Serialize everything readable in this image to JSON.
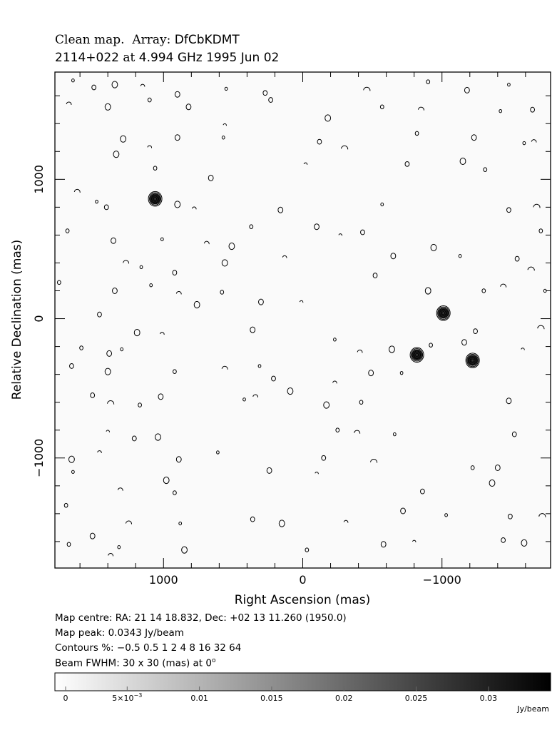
{
  "title": {
    "map_word": "Clean map.",
    "array_word": "Array:",
    "array_name": "DfCbKDMT",
    "source": "2114+022",
    "at_word": "at",
    "freq_date": "4.994 GHz 1995 Jun 02"
  },
  "info": {
    "map_centre": "Map centre:  RA: 21 14 18.832,  Dec: +02 13 11.260 (1950.0)",
    "map_peak": "Map peak: 0.0343 Jy/beam",
    "contours": "Contours %: −0.5 0.5 1 2 4 8 16 32 64",
    "beam_prefix": "Beam FWHM: 30 x 30 (mas) at 0",
    "beam_degree": "o"
  },
  "chart_data": {
    "type": "heatmap",
    "xlabel": "Right Ascension  (mas)",
    "ylabel": "Relative Declination  (mas)",
    "xlim": [
      1780,
      -1780
    ],
    "ylim": [
      -1790,
      1770
    ],
    "x_ticks": [
      1000,
      0,
      -1000
    ],
    "x_tick_labels": [
      "1000",
      "0",
      "−1000"
    ],
    "y_ticks": [
      1000,
      0,
      -1000
    ],
    "y_tick_labels": [
      "1000",
      "0",
      "−1000"
    ],
    "colorbar": {
      "range": [
        0,
        0.0343
      ],
      "unit": "Jy/beam",
      "ticks": [
        0,
        0.005,
        0.01,
        0.015,
        0.02,
        0.025,
        0.03
      ],
      "tick_labels": [
        "0",
        "5×10",
        "0.01",
        "0.015",
        "0.02",
        "0.025",
        "0.03"
      ],
      "exponent_label": "−3",
      "colormap": [
        "#ffffff",
        "#000000"
      ]
    },
    "sources": [
      {
        "x": 1060,
        "y": 860
      },
      {
        "x": -1010,
        "y": 40
      },
      {
        "x": -820,
        "y": -260
      },
      {
        "x": -1220,
        "y": -300
      }
    ],
    "noise_contours": [
      [
        1650,
        1710
      ],
      [
        1500,
        1660
      ],
      [
        1350,
        1680
      ],
      [
        1150,
        1670
      ],
      [
        900,
        1610
      ],
      [
        550,
        1650
      ],
      [
        270,
        1620
      ],
      [
        -460,
        1640
      ],
      [
        -900,
        1700
      ],
      [
        -1180,
        1640
      ],
      [
        -1480,
        1680
      ],
      [
        1680,
        1540
      ],
      [
        1400,
        1520
      ],
      [
        1100,
        1570
      ],
      [
        820,
        1520
      ],
      [
        560,
        1390
      ],
      [
        230,
        1570
      ],
      [
        -180,
        1440
      ],
      [
        -570,
        1520
      ],
      [
        -850,
        1500
      ],
      [
        -1420,
        1490
      ],
      [
        -1650,
        1500
      ],
      [
        1290,
        1290
      ],
      [
        1100,
        1230
      ],
      [
        900,
        1300
      ],
      [
        570,
        1300
      ],
      [
        -120,
        1270
      ],
      [
        -300,
        1220
      ],
      [
        -820,
        1330
      ],
      [
        -1230,
        1300
      ],
      [
        -1590,
        1260
      ],
      [
        -1660,
        1270
      ],
      [
        1340,
        1180
      ],
      [
        1060,
        1080
      ],
      [
        660,
        1010
      ],
      [
        -20,
        1110
      ],
      [
        -750,
        1110
      ],
      [
        -1150,
        1130
      ],
      [
        -1310,
        1070
      ],
      [
        1620,
        910
      ],
      [
        1480,
        840
      ],
      [
        1410,
        800
      ],
      [
        900,
        820
      ],
      [
        780,
        790
      ],
      [
        160,
        780
      ],
      [
        -570,
        820
      ],
      [
        -1480,
        780
      ],
      [
        -1680,
        800
      ],
      [
        1690,
        630
      ],
      [
        1360,
        560
      ],
      [
        1010,
        570
      ],
      [
        690,
        540
      ],
      [
        510,
        520
      ],
      [
        370,
        660
      ],
      [
        -100,
        660
      ],
      [
        -270,
        600
      ],
      [
        -430,
        620
      ],
      [
        -940,
        510
      ],
      [
        -1710,
        630
      ],
      [
        1270,
        400
      ],
      [
        1160,
        370
      ],
      [
        920,
        330
      ],
      [
        560,
        400
      ],
      [
        130,
        440
      ],
      [
        -650,
        450
      ],
      [
        -1130,
        450
      ],
      [
        -1540,
        430
      ],
      [
        -1640,
        350
      ],
      [
        1750,
        260
      ],
      [
        1350,
        200
      ],
      [
        1090,
        240
      ],
      [
        890,
        180
      ],
      [
        760,
        100
      ],
      [
        580,
        190
      ],
      [
        300,
        120
      ],
      [
        10,
        120
      ],
      [
        -520,
        310
      ],
      [
        -900,
        200
      ],
      [
        -1300,
        200
      ],
      [
        -1440,
        230
      ],
      [
        -1740,
        200
      ],
      [
        1460,
        30
      ],
      [
        1190,
        -100
      ],
      [
        1010,
        -110
      ],
      [
        360,
        -80
      ],
      [
        -230,
        -150
      ],
      [
        -1240,
        -90
      ],
      [
        -1710,
        -70
      ],
      [
        1590,
        -210
      ],
      [
        1390,
        -250
      ],
      [
        1300,
        -220
      ],
      [
        -410,
        -240
      ],
      [
        -640,
        -220
      ],
      [
        -920,
        -190
      ],
      [
        -1160,
        -170
      ],
      [
        -1580,
        -220
      ],
      [
        1660,
        -340
      ],
      [
        1400,
        -380
      ],
      [
        920,
        -380
      ],
      [
        560,
        -360
      ],
      [
        310,
        -340
      ],
      [
        210,
        -430
      ],
      [
        90,
        -520
      ],
      [
        -230,
        -460
      ],
      [
        -490,
        -390
      ],
      [
        -710,
        -390
      ],
      [
        1510,
        -550
      ],
      [
        1380,
        -610
      ],
      [
        1170,
        -620
      ],
      [
        1020,
        -560
      ],
      [
        420,
        -580
      ],
      [
        340,
        -560
      ],
      [
        -170,
        -620
      ],
      [
        -420,
        -600
      ],
      [
        -1480,
        -590
      ],
      [
        1400,
        -810
      ],
      [
        1210,
        -860
      ],
      [
        1040,
        -850
      ],
      [
        -250,
        -800
      ],
      [
        -390,
        -820
      ],
      [
        -660,
        -830
      ],
      [
        -1520,
        -830
      ],
      [
        1660,
        -1010
      ],
      [
        1460,
        -960
      ],
      [
        890,
        -1010
      ],
      [
        610,
        -960
      ],
      [
        -150,
        -1000
      ],
      [
        -510,
        -1030
      ],
      [
        -1220,
        -1070
      ],
      [
        -1400,
        -1070
      ],
      [
        1650,
        -1100
      ],
      [
        1310,
        -1230
      ],
      [
        980,
        -1160
      ],
      [
        920,
        -1250
      ],
      [
        240,
        -1090
      ],
      [
        -100,
        -1110
      ],
      [
        -860,
        -1240
      ],
      [
        -1360,
        -1180
      ],
      [
        1700,
        -1340
      ],
      [
        1250,
        -1470
      ],
      [
        880,
        -1470
      ],
      [
        360,
        -1440
      ],
      [
        150,
        -1470
      ],
      [
        -310,
        -1460
      ],
      [
        -720,
        -1380
      ],
      [
        -1030,
        -1410
      ],
      [
        -1490,
        -1420
      ],
      [
        -1720,
        -1420
      ],
      [
        1680,
        -1620
      ],
      [
        1510,
        -1560
      ],
      [
        1320,
        -1640
      ],
      [
        1380,
        -1700
      ],
      [
        850,
        -1660
      ],
      [
        -30,
        -1660
      ],
      [
        -580,
        -1620
      ],
      [
        -800,
        -1600
      ],
      [
        -1440,
        -1590
      ],
      [
        -1590,
        -1610
      ]
    ]
  }
}
